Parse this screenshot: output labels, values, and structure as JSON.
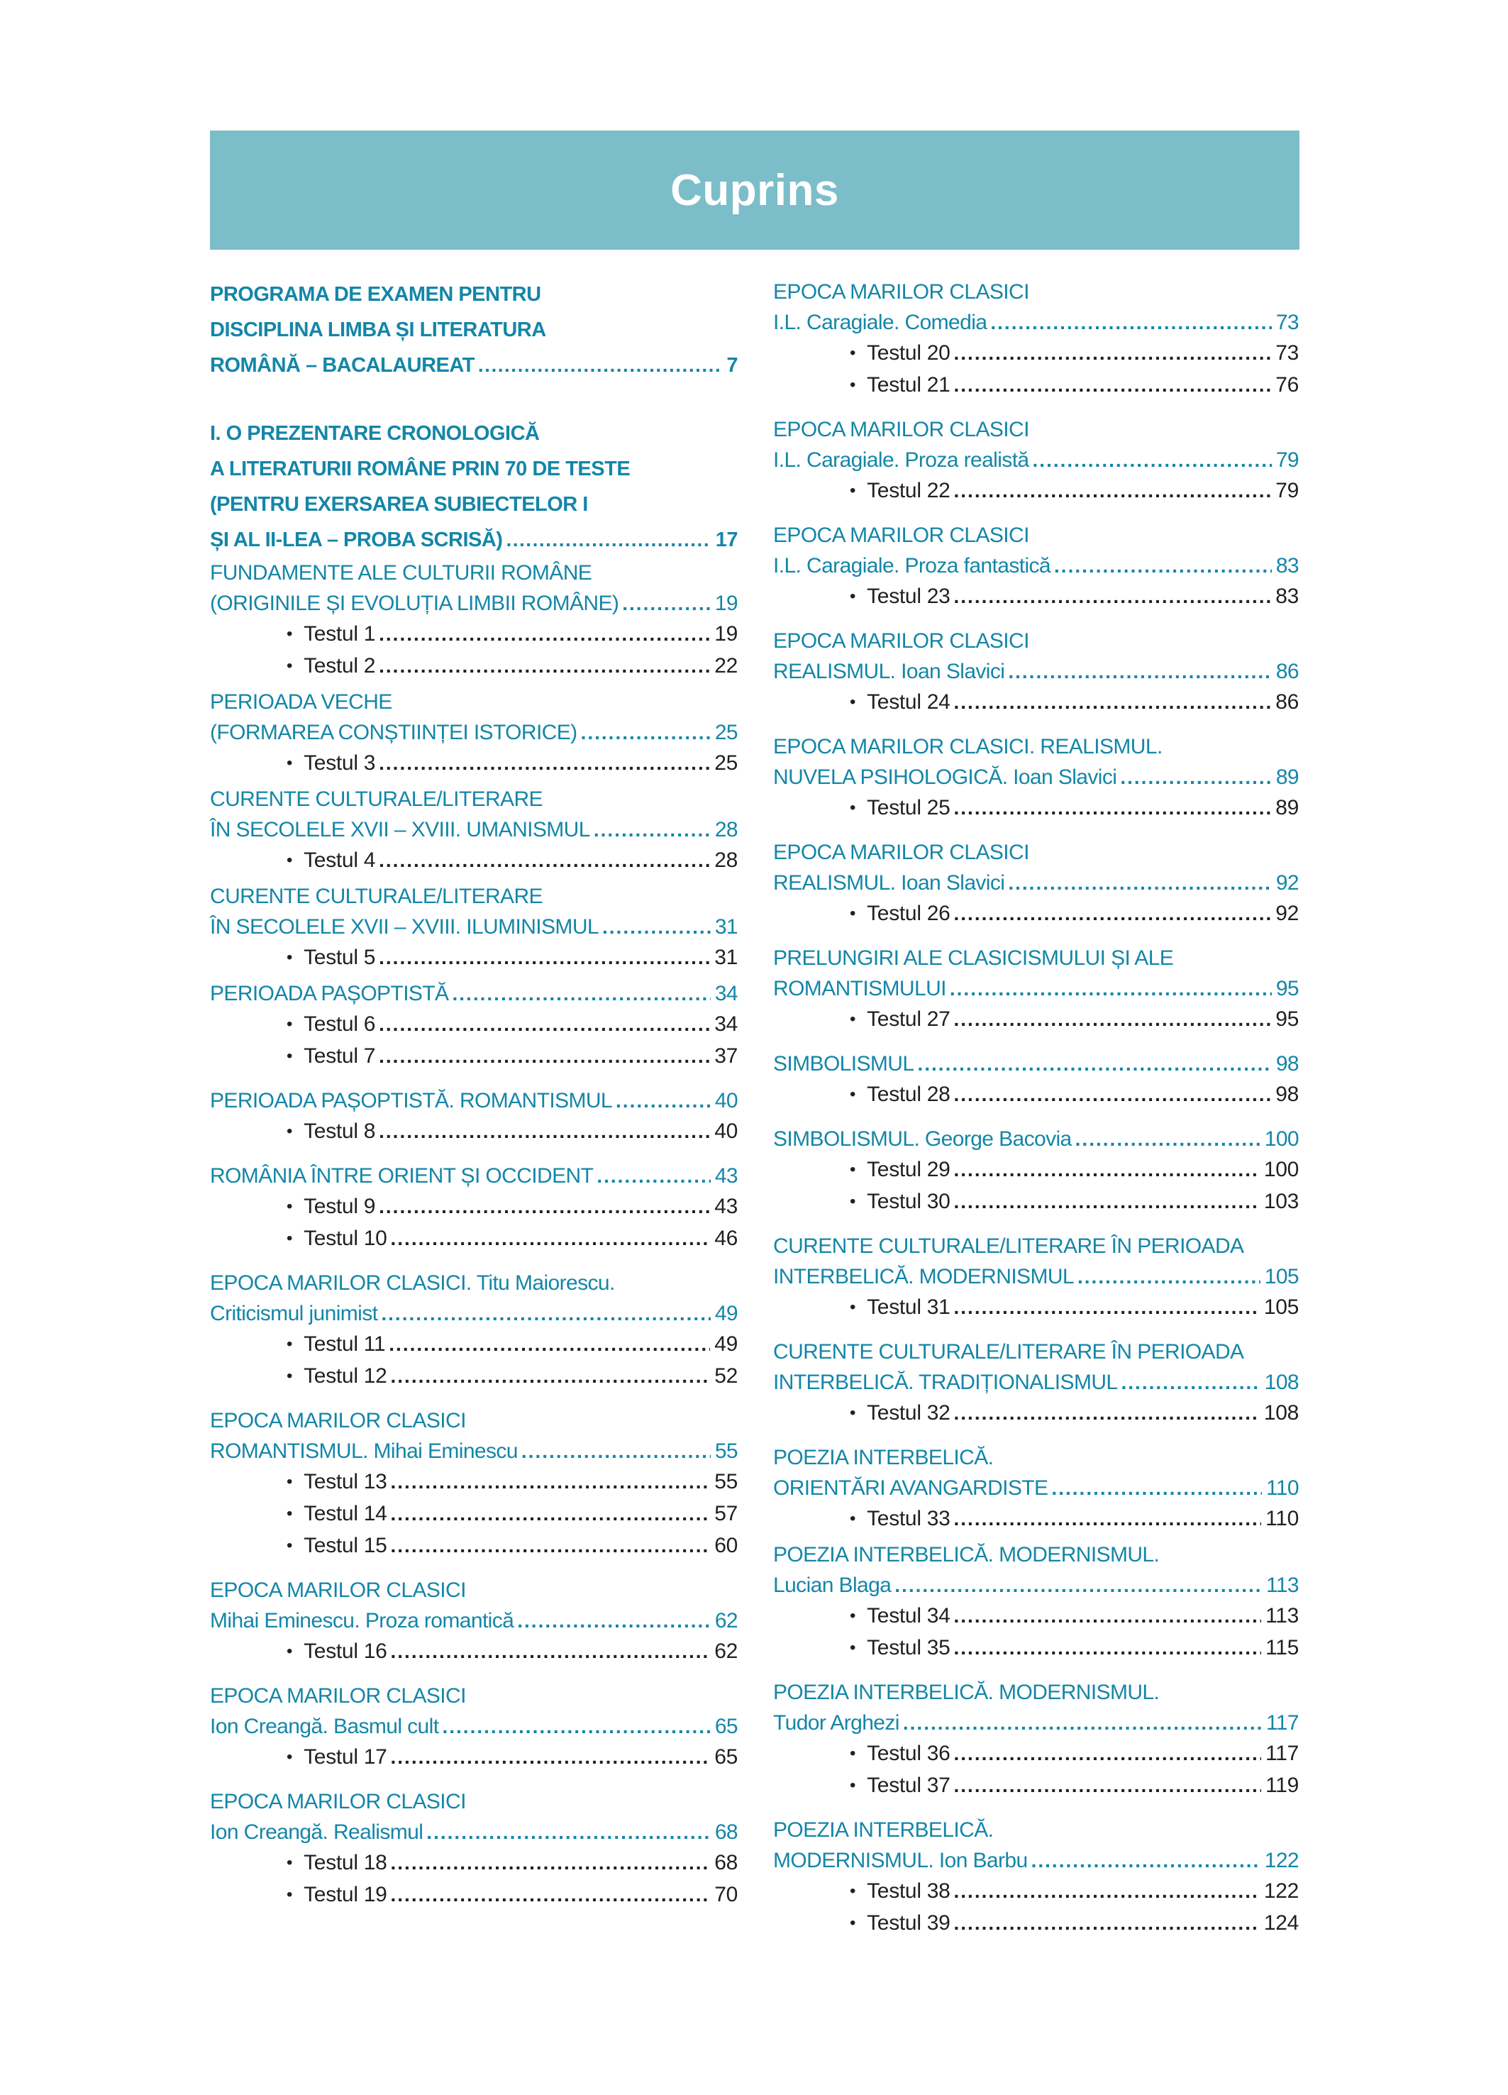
{
  "page": {
    "title": "Cuprins"
  },
  "colors": {
    "accent": "#1486a8",
    "band": "#7cbdca",
    "text": "#231f20",
    "page_bg": "#ffffff"
  },
  "icons": {
    "bullet": "•"
  },
  "toc": {
    "left": [
      {
        "emphasis": "major",
        "gap": "none",
        "heading_lines": [
          {
            "text": "PROGRAMA DE EXAMEN PENTRU"
          },
          {
            "text": "DISCIPLINA LIMBA ȘI LITERATURA"
          },
          {
            "text": "ROMÂNĂ – BACALAUREAT ",
            "page": "7"
          }
        ],
        "tests": []
      },
      {
        "emphasis": "major",
        "gap": "xl",
        "heading_lines": [
          {
            "text": "I. O PREZENTARE CRONOLOGICĂ"
          },
          {
            "text": "A LITERATURII ROMÂNE PRIN 70 DE TESTE"
          },
          {
            "text": "(PENTRU EXERSAREA SUBIECTELOR I"
          },
          {
            "text": "ȘI AL II-LEA – PROBA SCRISĂ)",
            "page": "17"
          }
        ],
        "tests": []
      },
      {
        "emphasis": "normal",
        "gap": "none",
        "heading_lines": [
          {
            "text": "FUNDAMENTE ALE CULTURII ROMÂNE"
          },
          {
            "text": "(ORIGINILE ȘI EVOLUȚIA LIMBII ROMÂNE)",
            "page": "19"
          }
        ],
        "tests": [
          {
            "label": "Testul 1",
            "page": "19"
          },
          {
            "label": "Testul 2",
            "page": "22"
          }
        ]
      },
      {
        "emphasis": "normal",
        "gap": "sm",
        "heading_lines": [
          {
            "text": "PERIOADA VECHE"
          },
          {
            "text": "(FORMAREA CONȘTIINȚEI ISTORICE)",
            "page": "25"
          }
        ],
        "tests": [
          {
            "label": "Testul 3",
            "page": "25"
          }
        ]
      },
      {
        "emphasis": "normal",
        "gap": "sm",
        "heading_lines": [
          {
            "text": "CURENTE CULTURALE/LITERARE"
          },
          {
            "text": "ÎN SECOLELE XVII – XVIII. UMANISMUL ",
            "page": "28"
          }
        ],
        "tests": [
          {
            "label": "Testul 4",
            "page": "28"
          }
        ]
      },
      {
        "emphasis": "normal",
        "gap": "sm",
        "heading_lines": [
          {
            "text": "CURENTE CULTURALE/LITERARE"
          },
          {
            "text": "ÎN SECOLELE XVII – XVIII. ILUMINISMUL",
            "page": "31"
          }
        ],
        "tests": [
          {
            "label": "Testul 5",
            "page": "31"
          }
        ]
      },
      {
        "emphasis": "normal",
        "gap": "sm",
        "heading_lines": [
          {
            "text": "PERIOADA PAȘOPTISTĂ ",
            "page": "34"
          }
        ],
        "tests": [
          {
            "label": "Testul 6",
            "page": "34"
          },
          {
            "label": "Testul 7",
            "page": "37"
          }
        ]
      },
      {
        "emphasis": "normal",
        "gap": "md",
        "heading_lines": [
          {
            "text": "PERIOADA PAȘOPTISTĂ. ROMANTISMUL ",
            "page": "40"
          }
        ],
        "tests": [
          {
            "label": "Testul 8",
            "page": "40"
          }
        ]
      },
      {
        "emphasis": "normal",
        "gap": "md",
        "heading_lines": [
          {
            "text": "ROMÂNIA ÎNTRE ORIENT ȘI OCCIDENT ",
            "page": "43"
          }
        ],
        "tests": [
          {
            "label": "Testul 9",
            "page": "43"
          },
          {
            "label": "Testul 10",
            "page": "46"
          }
        ]
      },
      {
        "emphasis": "normal",
        "gap": "md",
        "heading_lines": [
          {
            "text": "EPOCA MARILOR CLASICI. Titu Maiorescu."
          },
          {
            "text": "Criticismul junimist",
            "page": "49"
          }
        ],
        "tests": [
          {
            "label": "Testul 11",
            "page": "49"
          },
          {
            "label": "Testul 12",
            "page": "52"
          }
        ]
      },
      {
        "emphasis": "normal",
        "gap": "md",
        "heading_lines": [
          {
            "text": "EPOCA MARILOR CLASICI"
          },
          {
            "text": "ROMANTISMUL. Mihai Eminescu ",
            "page": "55"
          }
        ],
        "tests": [
          {
            "label": "Testul 13",
            "page": "55"
          },
          {
            "label": "Testul 14",
            "page": "57"
          },
          {
            "label": "Testul 15",
            "page": "60"
          }
        ]
      },
      {
        "emphasis": "normal",
        "gap": "md",
        "heading_lines": [
          {
            "text": "EPOCA MARILOR CLASICI"
          },
          {
            "text": "Mihai Eminescu. Proza romantică ",
            "page": "62"
          }
        ],
        "tests": [
          {
            "label": "Testul 16",
            "page": "62"
          }
        ]
      },
      {
        "emphasis": "normal",
        "gap": "md",
        "heading_lines": [
          {
            "text": "EPOCA MARILOR CLASICI"
          },
          {
            "text": "Ion Creangă. Basmul cult ",
            "page": "65"
          }
        ],
        "tests": [
          {
            "label": "Testul 17",
            "page": "65"
          }
        ]
      },
      {
        "emphasis": "normal",
        "gap": "md",
        "heading_lines": [
          {
            "text": "EPOCA MARILOR CLASICI"
          },
          {
            "text": "Ion Creangă. Realismul ",
            "page": "68"
          }
        ],
        "tests": [
          {
            "label": "Testul 18",
            "page": "68"
          },
          {
            "label": "Testul 19",
            "page": "70"
          }
        ]
      }
    ],
    "right": [
      {
        "emphasis": "normal",
        "gap": "none",
        "heading_lines": [
          {
            "text": "EPOCA MARILOR CLASICI"
          },
          {
            "text": "I.L. Caragiale. Comedia",
            "page": "73"
          }
        ],
        "tests": [
          {
            "label": "Testul 20",
            "page": "73"
          },
          {
            "label": "Testul 21",
            "page": "76"
          }
        ]
      },
      {
        "emphasis": "normal",
        "gap": "md",
        "heading_lines": [
          {
            "text": "EPOCA MARILOR CLASICI"
          },
          {
            "text": "I.L. Caragiale. Proza realistă",
            "page": "79"
          }
        ],
        "tests": [
          {
            "label": "Testul 22",
            "page": "79"
          }
        ]
      },
      {
        "emphasis": "normal",
        "gap": "md",
        "heading_lines": [
          {
            "text": "EPOCA MARILOR CLASICI"
          },
          {
            "text": "I.L. Caragiale. Proza fantastică",
            "page": "83"
          }
        ],
        "tests": [
          {
            "label": "Testul 23",
            "page": "83"
          }
        ]
      },
      {
        "emphasis": "normal",
        "gap": "md",
        "heading_lines": [
          {
            "text": "EPOCA MARILOR CLASICI"
          },
          {
            "text": "REALISMUL. Ioan Slavici ",
            "page": "86"
          }
        ],
        "tests": [
          {
            "label": "Testul 24",
            "page": "86"
          }
        ]
      },
      {
        "emphasis": "normal",
        "gap": "md",
        "heading_lines": [
          {
            "text": "EPOCA MARILOR CLASICI. REALISMUL."
          },
          {
            "text": "NUVELA PSIHOLOGICĂ. Ioan Slavici ",
            "page": "89"
          }
        ],
        "tests": [
          {
            "label": "Testul 25",
            "page": "89"
          }
        ]
      },
      {
        "emphasis": "normal",
        "gap": "md",
        "heading_lines": [
          {
            "text": "EPOCA MARILOR CLASICI"
          },
          {
            "text": "REALISMUL. Ioan Slavici ",
            "page": "92"
          }
        ],
        "tests": [
          {
            "label": "Testul 26",
            "page": "92"
          }
        ]
      },
      {
        "emphasis": "normal",
        "gap": "md",
        "heading_lines": [
          {
            "text": "PRELUNGIRI ALE CLASICISMULUI ȘI ALE"
          },
          {
            "text": "ROMANTISMULUI ",
            "page": "95"
          }
        ],
        "tests": [
          {
            "label": "Testul 27",
            "page": "95"
          }
        ]
      },
      {
        "emphasis": "normal",
        "gap": "md",
        "heading_lines": [
          {
            "text": "SIMBOLISMUL",
            "page": "98"
          }
        ],
        "tests": [
          {
            "label": "Testul 28",
            "page": "98"
          }
        ]
      },
      {
        "emphasis": "normal",
        "gap": "md",
        "heading_lines": [
          {
            "text": "SIMBOLISMUL. George Bacovia ",
            "page": "100"
          }
        ],
        "tests": [
          {
            "label": "Testul 29",
            "page": "100"
          },
          {
            "label": "Testul 30",
            "page": "103"
          }
        ]
      },
      {
        "emphasis": "normal",
        "gap": "md",
        "heading_lines": [
          {
            "text": "CURENTE CULTURALE/LITERARE ÎN PERIOADA"
          },
          {
            "text": "INTERBELICĂ. MODERNISMUL ",
            "page": "105"
          }
        ],
        "tests": [
          {
            "label": "Testul 31",
            "page": "105"
          }
        ]
      },
      {
        "emphasis": "normal",
        "gap": "md",
        "heading_lines": [
          {
            "text": "CURENTE CULTURALE/LITERARE ÎN PERIOADA"
          },
          {
            "text": "INTERBELICĂ. TRADIȚIONALISMUL ",
            "page": "108"
          }
        ],
        "tests": [
          {
            "label": "Testul 32",
            "page": "108"
          }
        ]
      },
      {
        "emphasis": "normal",
        "gap": "md",
        "heading_lines": [
          {
            "text": "POEZIA INTERBELICĂ."
          },
          {
            "text": "ORIENTĂRI AVANGARDISTE",
            "page": "110"
          }
        ],
        "tests": [
          {
            "label": "Testul 33",
            "page": "110"
          }
        ]
      },
      {
        "emphasis": "normal",
        "gap": "sm",
        "heading_lines": [
          {
            "text": "POEZIA INTERBELICĂ. MODERNISMUL."
          },
          {
            "text": "Lucian Blaga",
            "page": "113"
          }
        ],
        "tests": [
          {
            "label": "Testul 34",
            "page": "113"
          },
          {
            "label": "Testul 35",
            "page": "115"
          }
        ]
      },
      {
        "emphasis": "normal",
        "gap": "md",
        "heading_lines": [
          {
            "text": "POEZIA INTERBELICĂ. MODERNISMUL."
          },
          {
            "text": "Tudor Arghezi",
            "page": "117"
          }
        ],
        "tests": [
          {
            "label": "Testul 36",
            "page": "117"
          },
          {
            "label": "Testul 37",
            "page": "119"
          }
        ]
      },
      {
        "emphasis": "normal",
        "gap": "md",
        "heading_lines": [
          {
            "text": "POEZIA INTERBELICĂ."
          },
          {
            "text": "MODERNISMUL. Ion Barbu",
            "page": "122"
          }
        ],
        "tests": [
          {
            "label": "Testul 38",
            "page": "122"
          },
          {
            "label": "Testul 39",
            "page": "124"
          }
        ]
      }
    ]
  }
}
